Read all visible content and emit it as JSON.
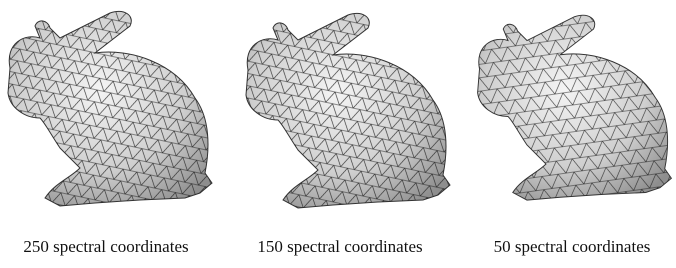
{
  "panels": [
    {
      "caption": "250 spectral coordinates"
    },
    {
      "caption": "150 spectral coordinates"
    },
    {
      "caption": "50 spectral coordinates"
    }
  ]
}
